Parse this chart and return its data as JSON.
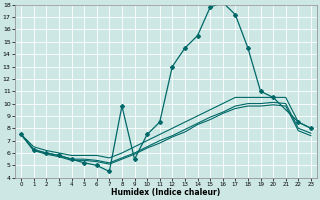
{
  "xlabel": "Humidex (Indice chaleur)",
  "xlim": [
    -0.5,
    23.5
  ],
  "ylim": [
    4,
    18
  ],
  "yticks": [
    4,
    5,
    6,
    7,
    8,
    9,
    10,
    11,
    12,
    13,
    14,
    15,
    16,
    17,
    18
  ],
  "xticks": [
    0,
    1,
    2,
    3,
    4,
    5,
    6,
    7,
    8,
    9,
    10,
    11,
    12,
    13,
    14,
    15,
    16,
    17,
    18,
    19,
    20,
    21,
    22,
    23
  ],
  "background_color": "#cde8e4",
  "grid_color": "#ffffff",
  "line_color": "#006868",
  "lines": [
    {
      "x": [
        0,
        1,
        2,
        3,
        4,
        5,
        6,
        7,
        8,
        9,
        10,
        11,
        12,
        13,
        14,
        15,
        16,
        17,
        18,
        19,
        20,
        22,
        23
      ],
      "y": [
        7.5,
        6.2,
        6.0,
        5.8,
        5.5,
        5.2,
        5.0,
        4.5,
        9.8,
        5.5,
        7.5,
        8.5,
        13.0,
        14.5,
        15.5,
        17.8,
        18.2,
        17.2,
        14.5,
        11.0,
        10.5,
        8.5,
        8.0
      ],
      "marker": "D",
      "markersize": 2.0,
      "linewidth": 0.9
    },
    {
      "x": [
        0,
        1,
        2,
        3,
        4,
        5,
        6,
        7,
        8,
        9,
        10,
        11,
        12,
        13,
        14,
        15,
        16,
        17,
        18,
        19,
        20,
        21,
        22,
        23
      ],
      "y": [
        7.5,
        6.5,
        6.2,
        6.0,
        5.8,
        5.8,
        5.8,
        5.6,
        6.0,
        6.5,
        7.0,
        7.5,
        8.0,
        8.5,
        9.0,
        9.5,
        10.0,
        10.5,
        10.5,
        10.5,
        10.5,
        10.5,
        8.5,
        8.0
      ],
      "marker": null,
      "markersize": 0,
      "linewidth": 0.8
    },
    {
      "x": [
        0,
        1,
        2,
        3,
        4,
        5,
        6,
        7,
        8,
        9,
        10,
        11,
        12,
        13,
        14,
        15,
        16,
        17,
        18,
        19,
        20,
        21,
        22,
        23
      ],
      "y": [
        7.5,
        6.3,
        6.0,
        5.8,
        5.5,
        5.5,
        5.4,
        5.2,
        5.6,
        6.0,
        6.5,
        7.0,
        7.4,
        7.9,
        8.4,
        8.9,
        9.3,
        9.8,
        10.0,
        10.0,
        10.1,
        10.0,
        8.0,
        7.6
      ],
      "marker": null,
      "markersize": 0,
      "linewidth": 0.8
    },
    {
      "x": [
        0,
        1,
        2,
        3,
        4,
        5,
        6,
        7,
        8,
        9,
        10,
        11,
        12,
        13,
        14,
        15,
        16,
        17,
        18,
        19,
        20,
        21,
        22,
        23
      ],
      "y": [
        7.5,
        6.2,
        5.9,
        5.7,
        5.4,
        5.4,
        5.3,
        5.1,
        5.5,
        5.9,
        6.4,
        6.8,
        7.3,
        7.7,
        8.3,
        8.7,
        9.2,
        9.6,
        9.8,
        9.8,
        9.9,
        9.8,
        7.8,
        7.4
      ],
      "marker": null,
      "markersize": 0,
      "linewidth": 0.8
    }
  ]
}
